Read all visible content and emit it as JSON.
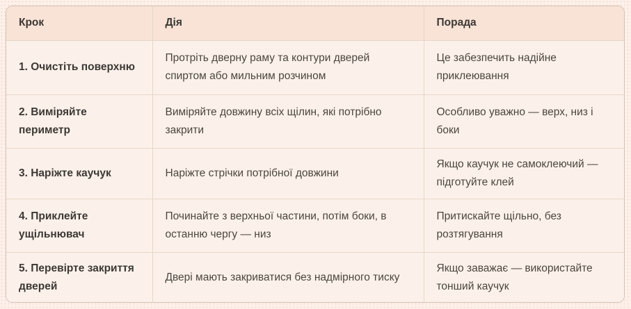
{
  "table": {
    "columns": [
      {
        "label": "Крок"
      },
      {
        "label": "Дія"
      },
      {
        "label": "Порада"
      }
    ],
    "rows": [
      {
        "step": "1. Очистіть поверхню",
        "action": "Протріть дверну раму та контури дверей спиртом або мильним розчином",
        "tip": "Це забезпечить надійне приклеювання"
      },
      {
        "step": "2. Виміряйте периметр",
        "action": "Виміряйте довжину всіх щілин, які потрібно закрити",
        "tip": "Особливо уважно — верх, низ і боки"
      },
      {
        "step": "3. Наріжте каучук",
        "action": "Наріжте стрічки потрібної довжини",
        "tip": "Якщо каучук не самоклеючий — підготуйте клей"
      },
      {
        "step": "4. Приклейте ущільнювач",
        "action": "Починайте з верхньої частини, потім боки, в останню чергу — низ",
        "tip": "Притискайте щільно, без розтягування"
      },
      {
        "step": "5. Перевірте закриття дверей",
        "action": "Двері мають закриватися без надмірного тиску",
        "tip": "Якщо заважає — використайте тонший каучук"
      }
    ],
    "colors": {
      "page_background": "#fdf1ea",
      "header_background": "#f8e3d6",
      "row_background": "#fcf1ea",
      "outer_border": "#d5c2b4",
      "inner_divider": "#e7d6c7",
      "heading_text": "#3c3834",
      "body_text": "#4a453f"
    }
  }
}
